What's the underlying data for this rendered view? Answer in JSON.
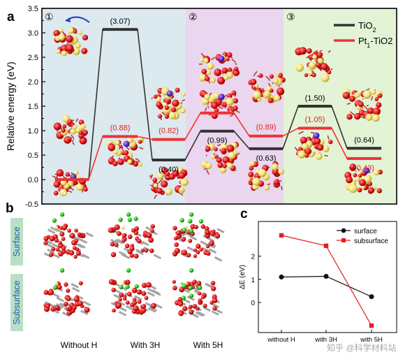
{
  "panel_labels": {
    "a": "a",
    "b": "b",
    "c": "c"
  },
  "chart_data": [
    {
      "id": "a",
      "type": "line",
      "ylabel": "Relative energy (eV)",
      "ylim": [
        -0.5,
        3.5
      ],
      "yticks": [
        "-0.5",
        "0.0",
        "0.5",
        "1.0",
        "1.5",
        "2.0",
        "2.5",
        "3.0",
        "3.5"
      ],
      "grid": false,
      "legend": "top-right",
      "regions": [
        {
          "label": "①",
          "color": "#dce9ee"
        },
        {
          "label": "②",
          "color": "#ead6ee"
        },
        {
          "label": "③",
          "color": "#e3f3d6"
        }
      ],
      "series": [
        {
          "name": "TiO2",
          "color": "#333333",
          "y": [
            0.0,
            3.07,
            0.4,
            0.99,
            0.63,
            1.5,
            0.64
          ],
          "labels": [
            "",
            "(3.07)",
            "(0.40)",
            "(0.99)",
            "(0.63)",
            "(1.50)",
            "(0.64)"
          ]
        },
        {
          "name": "Pt1-TiO2",
          "color": "#ee3333",
          "y": [
            0.0,
            0.88,
            0.82,
            1.36,
            0.89,
            1.05,
            0.43
          ],
          "labels": [
            "",
            "(0.88)",
            "(0.82)",
            "(1.36)",
            "(0.89)",
            "(1.05)",
            "(0.43)"
          ]
        }
      ]
    },
    {
      "id": "c",
      "type": "line",
      "ylabel": "ΔE (eV)",
      "categories": [
        "without  H",
        "with  3H",
        "with  5H"
      ],
      "yticks": [
        "0",
        "1",
        "2"
      ],
      "ylim": [
        -1.3,
        3.5
      ],
      "grid": false,
      "legend": "top-right",
      "series": [
        {
          "name": "surface",
          "color": "#111111",
          "marker": "circle",
          "values": [
            1.1,
            1.13,
            0.25
          ]
        },
        {
          "name": "subsurface",
          "color": "#e02020",
          "marker": "square",
          "values": [
            2.9,
            2.45,
            -1.0
          ]
        }
      ]
    }
  ],
  "panel_b": {
    "row_labels": [
      "Surface",
      "Subsurface"
    ],
    "col_labels": [
      "Without H",
      "With 3H",
      "With 5H"
    ]
  },
  "watermark": "知乎 @科学材料站"
}
